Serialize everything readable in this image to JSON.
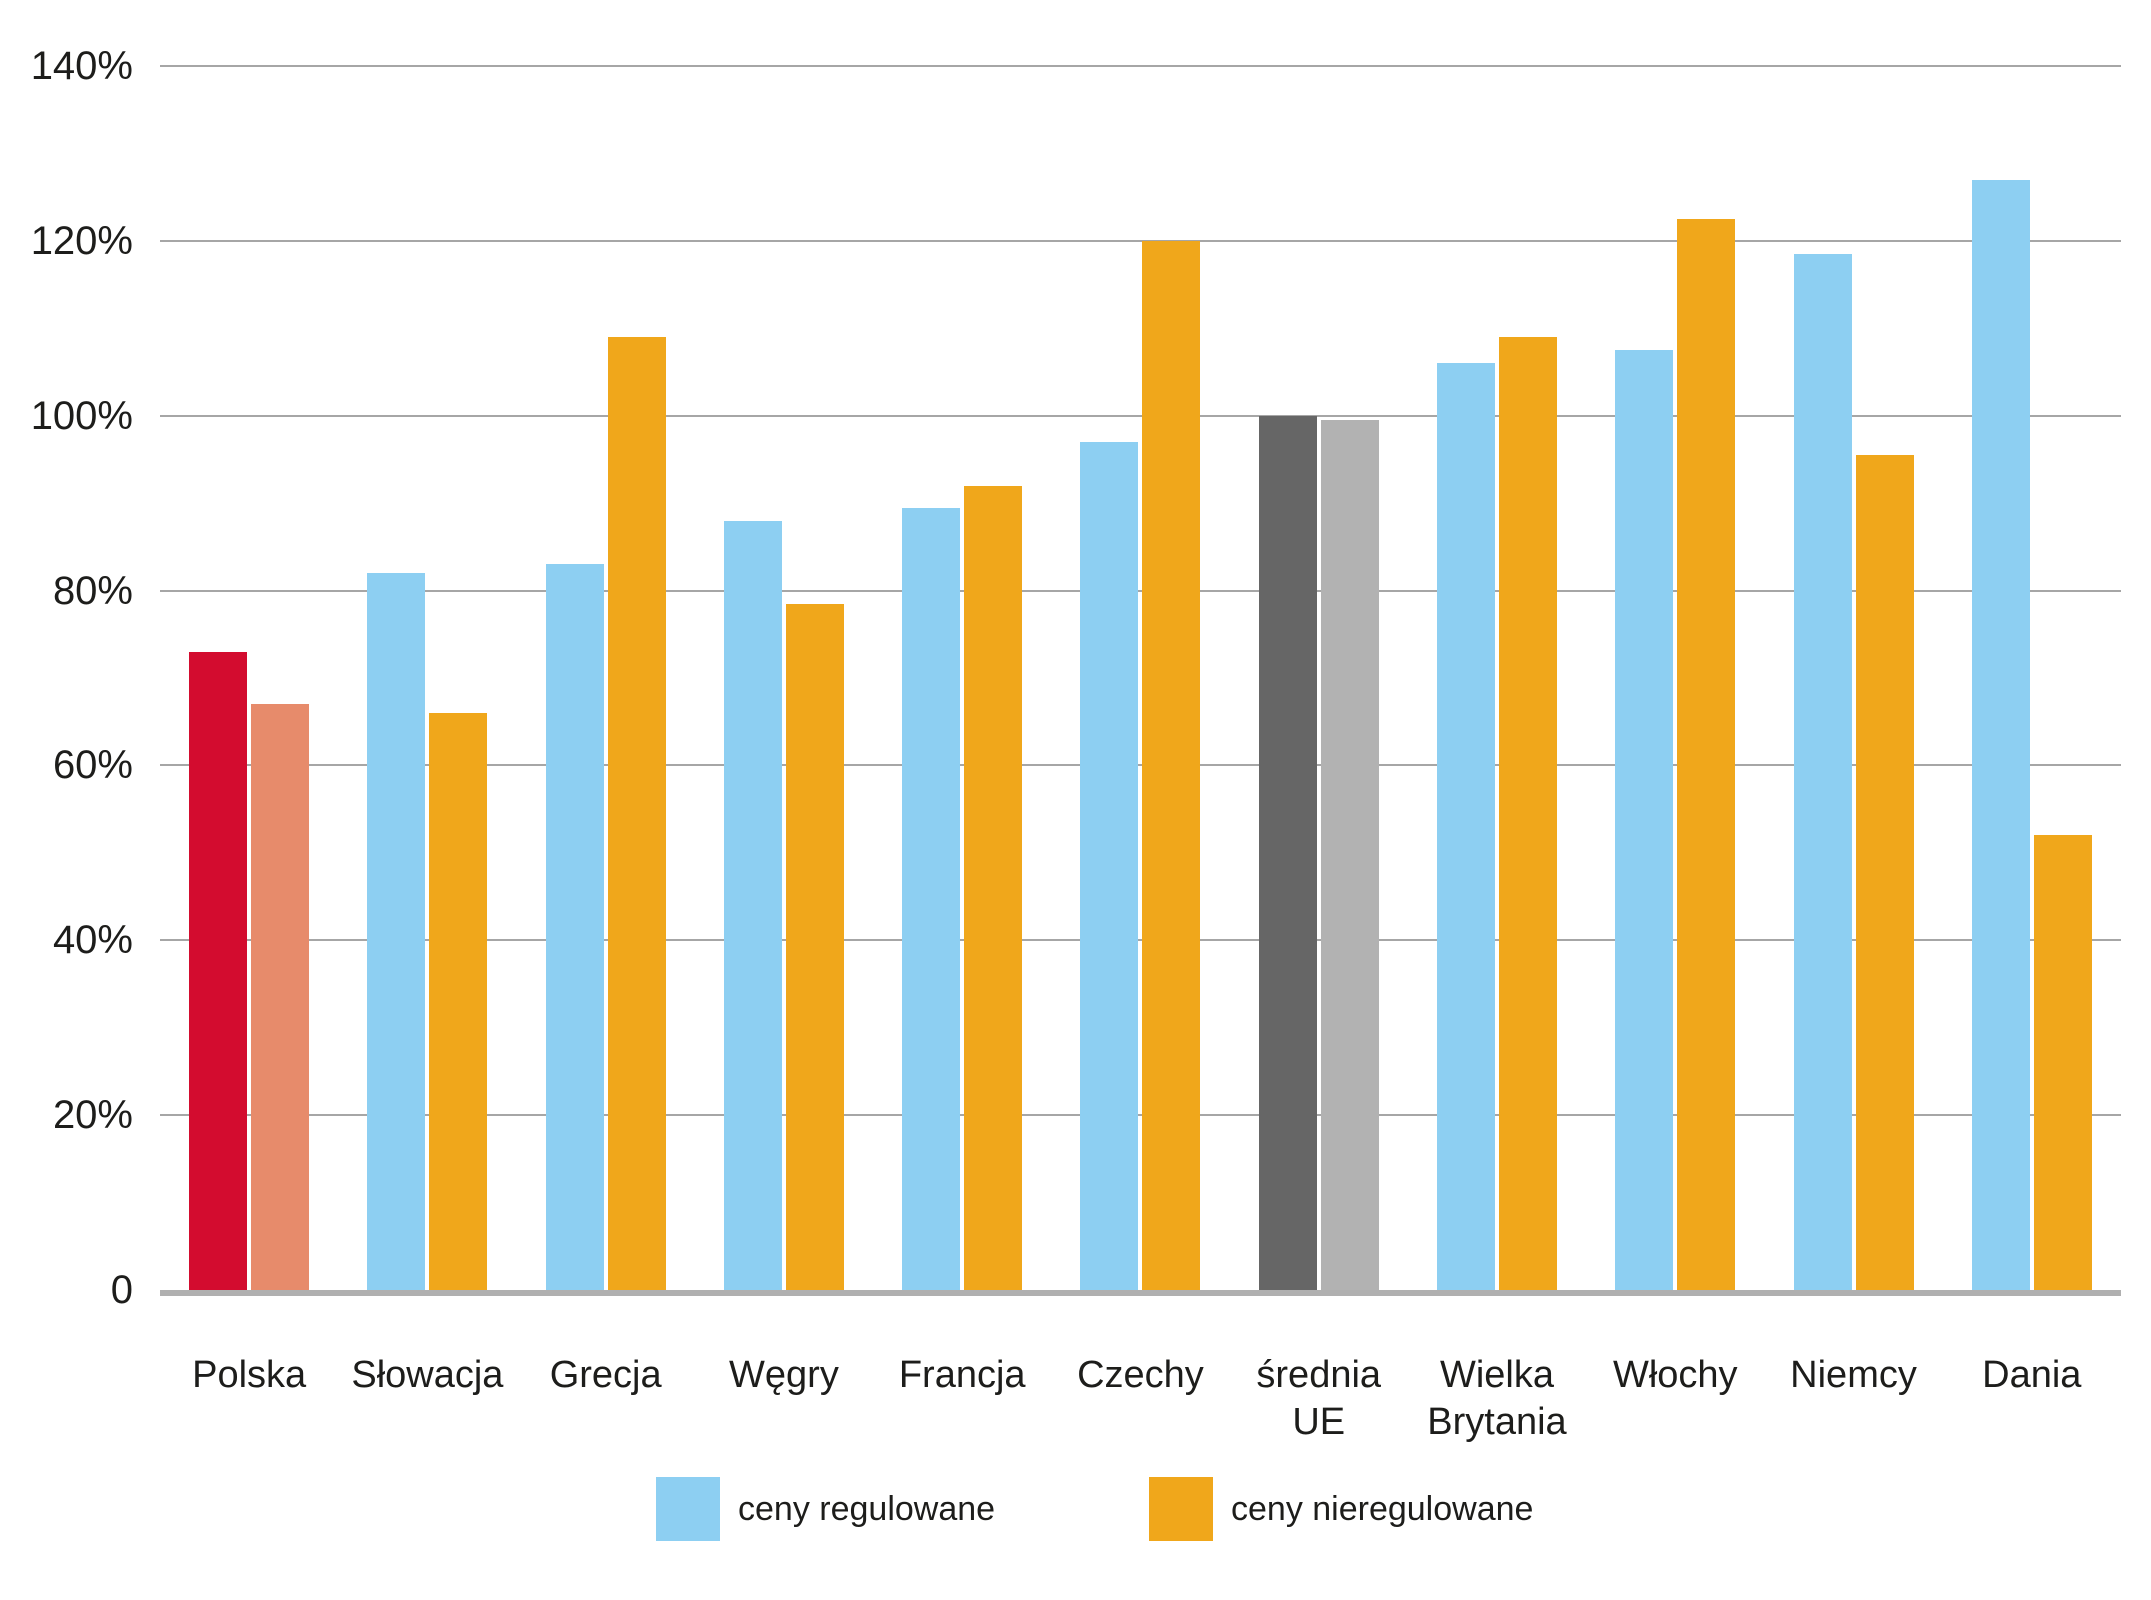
{
  "chart_data": {
    "type": "bar",
    "title": "",
    "categories": [
      "Polska",
      "Słowacja",
      "Grecja",
      "Węgry",
      "Francja",
      "Czechy",
      "średnia UE",
      "Wielka Brytania",
      "Włochy",
      "Niemcy",
      "Dania"
    ],
    "series": [
      {
        "name": "ceny regulowane",
        "color": "#8DCFF2",
        "values": [
          73,
          82,
          83,
          88,
          89.5,
          97,
          100,
          106,
          107.5,
          118.5,
          127
        ],
        "bar_colors": [
          "#D30C2F",
          null,
          null,
          null,
          null,
          null,
          "#666666",
          null,
          null,
          null,
          null
        ]
      },
      {
        "name": "ceny nieregulowane",
        "color": "#F0A71B",
        "values": [
          67,
          66,
          109,
          78.5,
          92,
          120,
          99.5,
          109,
          122.5,
          95.5,
          52
        ],
        "bar_colors": [
          "#E78B6B",
          null,
          null,
          null,
          null,
          null,
          "#B2B2B2",
          null,
          null,
          null,
          null
        ]
      }
    ],
    "xlabel": "",
    "ylabel": "",
    "ylim": [
      0,
      140
    ],
    "ytick_step": 20,
    "yticks": [
      "0",
      "20%",
      "40%",
      "60%",
      "80%",
      "100%",
      "120%",
      "140%"
    ],
    "grid": true,
    "legend_position": "bottom"
  },
  "legend": {
    "regulated_label": "ceny regulowane",
    "unregulated_label": "ceny nieregulowane"
  },
  "colors": {
    "grid": "#A6A6A6",
    "baseline": "#B0B0B0",
    "text": "#1D1D1B"
  }
}
